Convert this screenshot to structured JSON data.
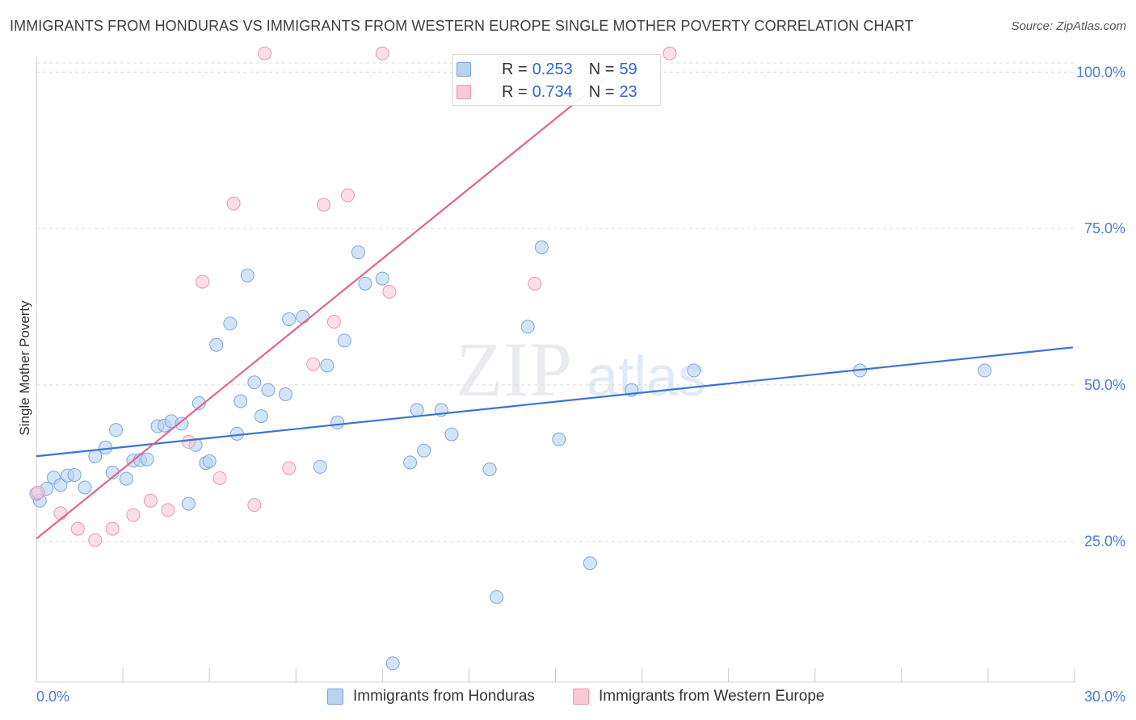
{
  "header": {
    "title": "IMMIGRANTS FROM HONDURAS VS IMMIGRANTS FROM WESTERN EUROPE SINGLE MOTHER POVERTY CORRELATION CHART",
    "source": "Source: ZipAtlas.com"
  },
  "watermark": {
    "zip": "ZIP",
    "atlas": "atlas"
  },
  "legend": {
    "r_label": "R =",
    "n_label": "N =",
    "entries": [
      {
        "r": "0.253",
        "n": "59",
        "fill": "#b8d2f2",
        "stroke": "#7aa6e0"
      },
      {
        "r": "0.734",
        "n": "23",
        "fill": "#f9c9d6",
        "stroke": "#ee95ae"
      }
    ]
  },
  "bottom_legend": [
    "Immigrants from Honduras",
    "Immigrants from Western Europe"
  ],
  "colors": {
    "blue": "#3a74d0",
    "pink": "#e06590",
    "grid": "#dcdcdc",
    "axis_text": "#4a7fcf"
  },
  "chart_data": {
    "type": "scatter",
    "title": "IMMIGRANTS FROM HONDURAS VS IMMIGRANTS FROM WESTERN EUROPE SINGLE MOTHER POVERTY CORRELATION CHART",
    "xlabel": "",
    "ylabel": "Single Mother Poverty",
    "xlim": [
      0,
      30
    ],
    "ylim": [
      2.5,
      102.5
    ],
    "x_tick_labels": [
      "0.0%",
      "30.0%"
    ],
    "y_ticks": [
      25,
      50,
      75,
      100
    ],
    "y_tick_labels": [
      "25.0%",
      "50.0%",
      "75.0%",
      "100.0%"
    ],
    "grid": true,
    "series": [
      {
        "name": "Immigrants from Honduras",
        "color": "#3a74d0",
        "r": 0.253,
        "n": 59,
        "trendline": {
          "x": [
            0,
            29.95
          ],
          "y": [
            38.6,
            56.0
          ]
        },
        "points": [
          [
            0.1,
            31.5
          ],
          [
            0.3,
            33.4
          ],
          [
            0.5,
            35.2
          ],
          [
            0.7,
            34.0
          ],
          [
            0.9,
            35.5
          ],
          [
            1.1,
            35.6
          ],
          [
            1.4,
            33.6
          ],
          [
            1.7,
            38.6
          ],
          [
            2.0,
            40.0
          ],
          [
            2.3,
            42.8
          ],
          [
            2.2,
            36.0
          ],
          [
            2.6,
            35.0
          ],
          [
            2.8,
            37.9
          ],
          [
            3.0,
            38.0
          ],
          [
            3.2,
            38.1
          ],
          [
            3.5,
            43.4
          ],
          [
            3.7,
            43.5
          ],
          [
            3.9,
            44.2
          ],
          [
            4.2,
            43.8
          ],
          [
            4.4,
            31.0
          ],
          [
            4.6,
            40.4
          ],
          [
            4.7,
            47.1
          ],
          [
            4.9,
            37.5
          ],
          [
            5.0,
            37.8
          ],
          [
            5.2,
            56.4
          ],
          [
            5.6,
            59.8
          ],
          [
            5.8,
            42.2
          ],
          [
            5.9,
            47.4
          ],
          [
            6.1,
            67.5
          ],
          [
            6.3,
            50.4
          ],
          [
            6.5,
            45.0
          ],
          [
            6.7,
            49.2
          ],
          [
            7.2,
            48.5
          ],
          [
            7.3,
            60.5
          ],
          [
            7.7,
            60.9
          ],
          [
            8.2,
            36.9
          ],
          [
            8.4,
            53.1
          ],
          [
            8.7,
            44.0
          ],
          [
            8.9,
            57.1
          ],
          [
            9.3,
            71.2
          ],
          [
            9.5,
            66.2
          ],
          [
            10.0,
            67.0
          ],
          [
            10.3,
            5.5
          ],
          [
            10.8,
            37.6
          ],
          [
            11.0,
            46.0
          ],
          [
            11.2,
            39.5
          ],
          [
            11.7,
            46.0
          ],
          [
            12.0,
            42.1
          ],
          [
            13.1,
            36.5
          ],
          [
            13.3,
            16.1
          ],
          [
            14.2,
            59.3
          ],
          [
            14.6,
            72.0
          ],
          [
            15.1,
            41.3
          ],
          [
            16.0,
            21.5
          ],
          [
            17.2,
            49.2
          ],
          [
            19.0,
            52.3
          ],
          [
            23.8,
            52.3
          ],
          [
            27.4,
            52.3
          ],
          [
            0.0,
            32.6
          ]
        ]
      },
      {
        "name": "Immigrants from Western Europe",
        "color": "#e06590",
        "r": 0.734,
        "n": 23,
        "trendline": {
          "x": [
            0,
            17.0
          ],
          "y": [
            25.4,
            101.5
          ]
        },
        "points": [
          [
            0.05,
            32.8
          ],
          [
            0.7,
            29.5
          ],
          [
            1.2,
            27.0
          ],
          [
            1.7,
            25.2
          ],
          [
            2.2,
            27.0
          ],
          [
            2.8,
            29.2
          ],
          [
            3.3,
            31.5
          ],
          [
            3.8,
            30.0
          ],
          [
            4.4,
            40.9
          ],
          [
            4.8,
            66.5
          ],
          [
            5.3,
            35.1
          ],
          [
            5.7,
            79.0
          ],
          [
            6.3,
            30.8
          ],
          [
            6.6,
            103.0
          ],
          [
            7.3,
            36.7
          ],
          [
            8.0,
            53.3
          ],
          [
            8.3,
            78.8
          ],
          [
            8.6,
            60.1
          ],
          [
            9.0,
            80.3
          ],
          [
            10.0,
            103.0
          ],
          [
            10.2,
            64.9
          ],
          [
            14.4,
            66.2
          ],
          [
            18.3,
            103.0
          ]
        ]
      }
    ]
  }
}
